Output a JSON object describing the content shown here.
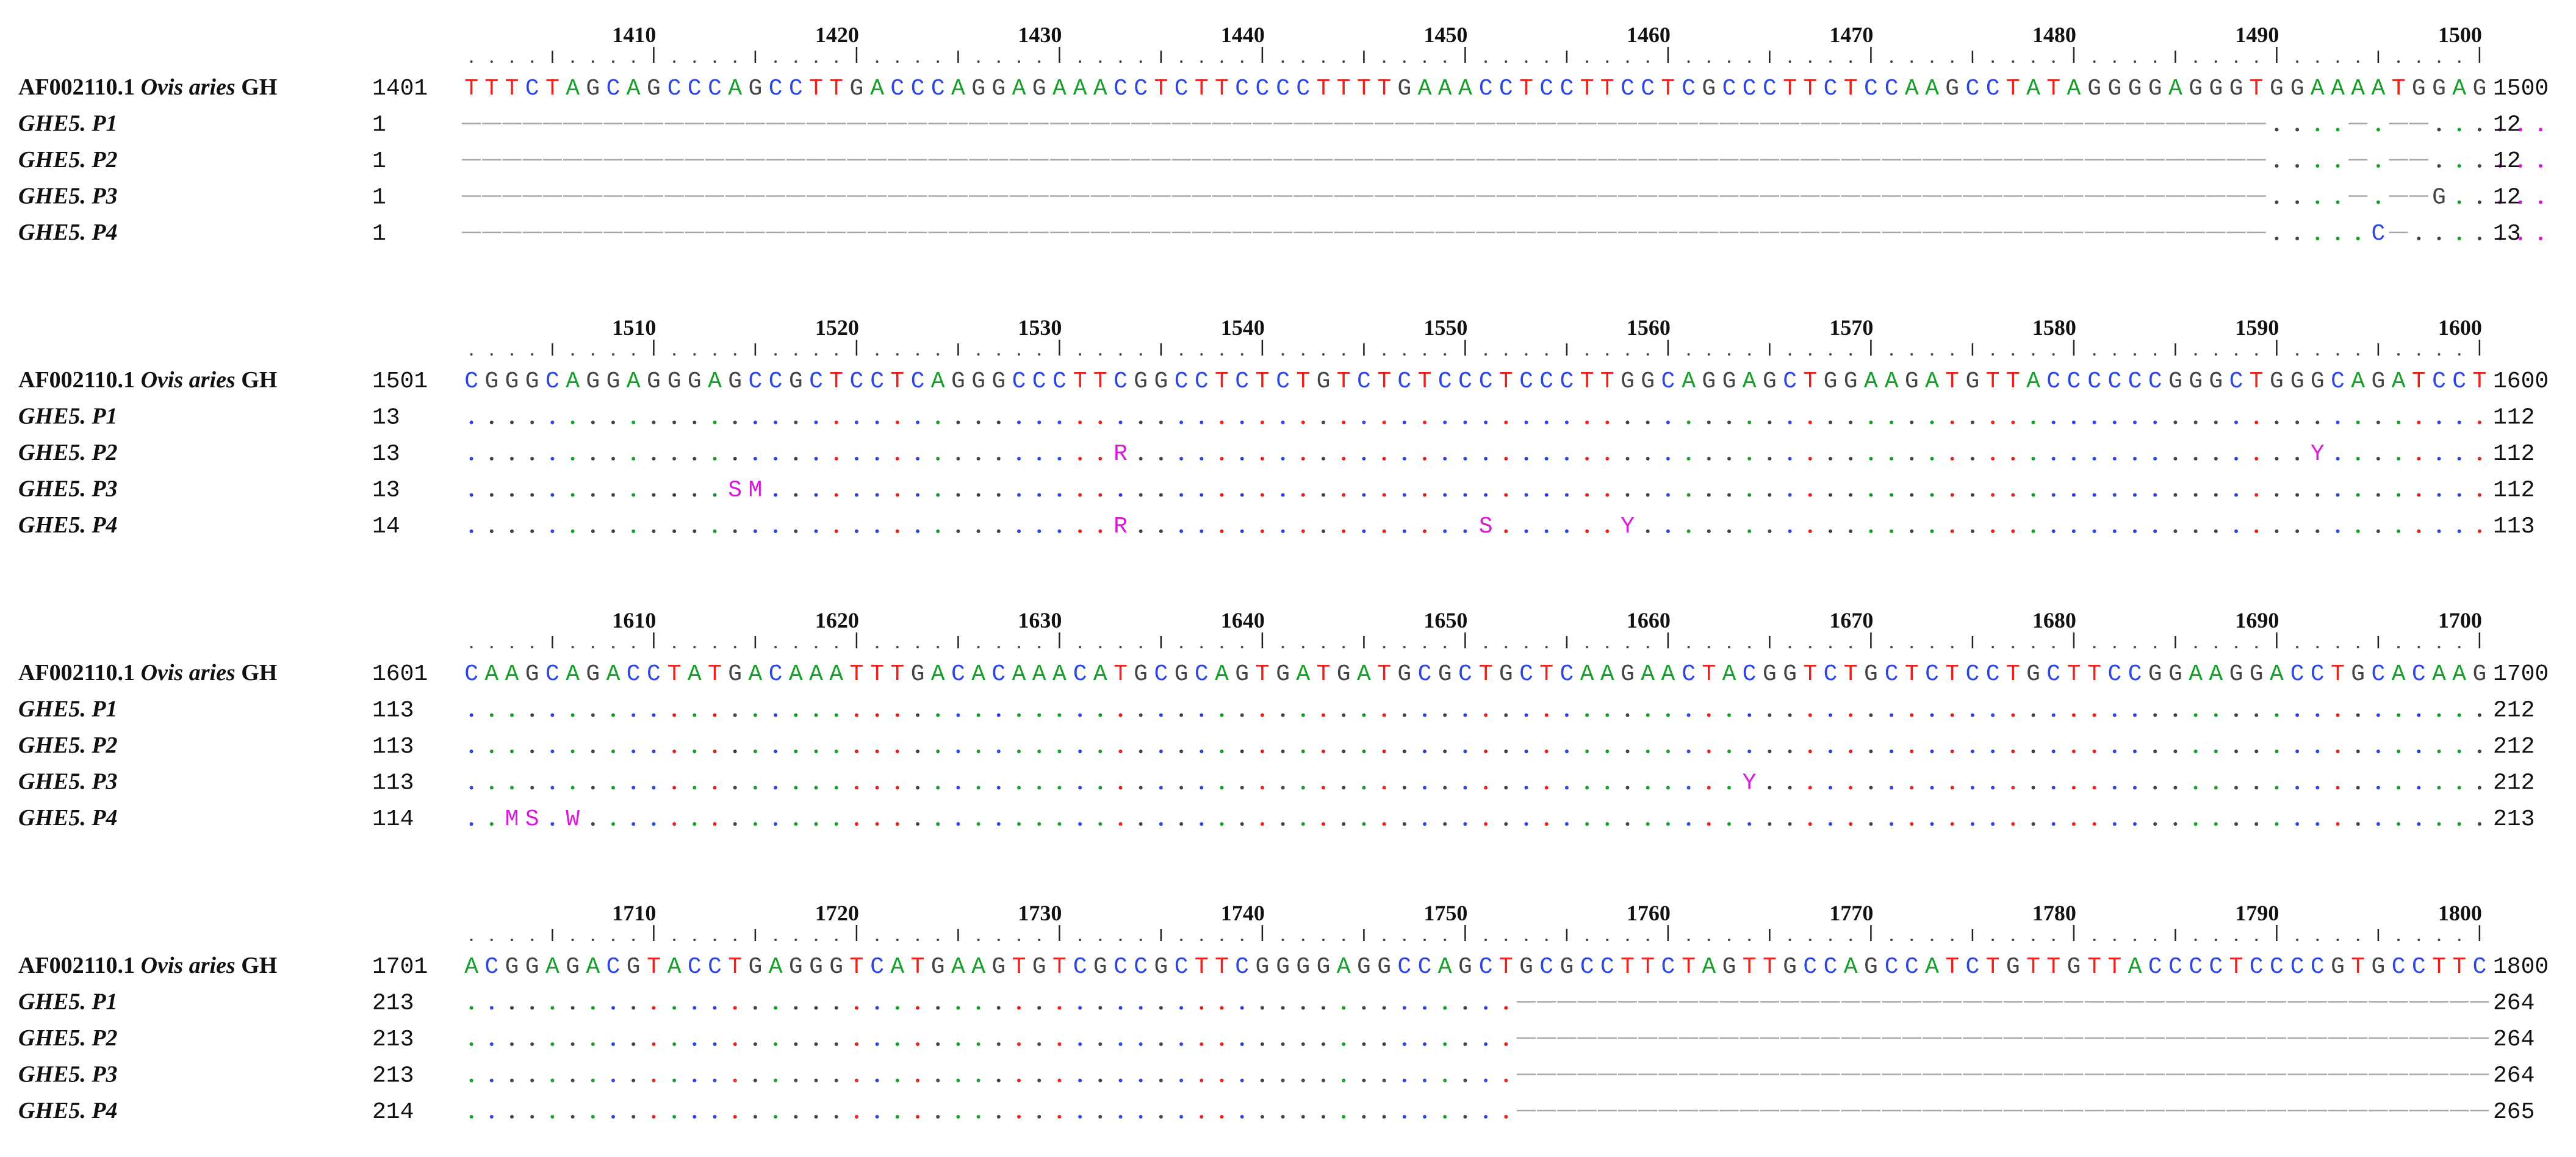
{
  "colors": {
    "A": "#16a02a",
    "C": "#2c46e6",
    "G": "#444444",
    "T": "#e8221c",
    "iupac": "#d81ad8",
    "gap": "#a8a8a8",
    "text": "#111111"
  },
  "name_prefixes": {
    "ref": "AF002110.1 ",
    "sample": ""
  },
  "ruler_tick_char": "|",
  "blocks": [
    {
      "ruler": [
        "1410",
        "1420",
        "1430",
        "1440",
        "1450",
        "1460",
        "1470",
        "1480",
        "1490",
        "1500"
      ],
      "start_label": "1401",
      "end_label": "1500",
      "reference": {
        "name": "AF002110.1 Ovis aries GH",
        "name_species": "Ovis aries",
        "name_gene": "GH",
        "sequence": "TTTCTAGCAGCCCAGCCTTGACCCAGGAGAAACCTCTTCCCCTTTTGAAACCTCCTTCCTCGCCCTTCTCCAAGCCTATAGGGGAGGGTGGAAAATGGAG"
      },
      "samples": [
        {
          "name": "GHE5. P1",
          "start": "1",
          "end": "12",
          "sequence": "-----------------------------------------------------------------------------------------....-.--......"
        },
        {
          "name": "GHE5. P2",
          "start": "1",
          "end": "12",
          "sequence": "-----------------------------------------------------------------------------------------....-.--......"
        },
        {
          "name": "GHE5. P3",
          "start": "1",
          "end": "12",
          "sequence": "-----------------------------------------------------------------------------------------....-.--G....."
        },
        {
          "name": "GHE5. P4",
          "start": "1",
          "end": "13",
          "sequence": "-----------------------------------------------------------------------------------------.....C-......."
        }
      ]
    },
    {
      "ruler": [
        "1510",
        "1520",
        "1530",
        "1540",
        "1550",
        "1560",
        "1570",
        "1580",
        "1590",
        "1600"
      ],
      "start_label": "1501",
      "end_label": "1600",
      "reference": {
        "name": "AF002110.1 Ovis aries GH",
        "name_species": "Ovis aries",
        "name_gene": "GH",
        "sequence": "CGGGCAGGAGGGAGCCGCTCCTCAGGGCCCTTCGGCCTCTCTGTCTCTCCCTCCCTTGGCAGGAGCTGGAAGATGTTACCCCCCGGGCTGGGCAGATCCT"
      },
      "samples": [
        {
          "name": "GHE5. P1",
          "start": "13",
          "end": "112",
          "sequence": "...................................................................................................."
        },
        {
          "name": "GHE5. P2",
          "start": "13",
          "end": "112",
          "sequence": "................................R..........................................................Y........"
        },
        {
          "name": "GHE5. P3",
          "start": "13",
          "end": "112",
          "sequence": ".............SM....................................................................................."
        },
        {
          "name": "GHE5. P4",
          "start": "14",
          "end": "113",
          "sequence": "................................R.................S......Y.........................................."
        }
      ]
    },
    {
      "ruler": [
        "1610",
        "1620",
        "1630",
        "1640",
        "1650",
        "1660",
        "1670",
        "1680",
        "1690",
        "1700"
      ],
      "start_label": "1601",
      "end_label": "1700",
      "reference": {
        "name": "AF002110.1 Ovis aries GH",
        "name_species": "Ovis aries",
        "name_gene": "GH",
        "sequence": "CAAGCAGACCTATGACAAATTTGACACAAACATGCGCAGTGATGATGCGCTGCTCAAGAACTACGGTCTGCTCTCCTGCTTCCGGAAGGACCTGCACAAG"
      },
      "samples": [
        {
          "name": "GHE5. P1",
          "start": "113",
          "end": "212",
          "sequence": "...................................................................................................."
        },
        {
          "name": "GHE5. P2",
          "start": "113",
          "end": "212",
          "sequence": "...................................................................................................."
        },
        {
          "name": "GHE5. P3",
          "start": "113",
          "end": "212",
          "sequence": "...............................................................Y...................................."
        },
        {
          "name": "GHE5. P4",
          "start": "114",
          "end": "213",
          "sequence": "..MS.W.............................................................................................."
        }
      ]
    },
    {
      "ruler": [
        "1710",
        "1720",
        "1730",
        "1740",
        "1750",
        "1760",
        "1770",
        "1780",
        "1790",
        "1800"
      ],
      "start_label": "1701",
      "end_label": "1800",
      "reference": {
        "name": "AF002110.1 Ovis aries GH",
        "name_species": "Ovis aries",
        "name_gene": "GH",
        "sequence": "ACGGAGACGTACCTGAGGGTCATGAAGTGTCGCCGCTTCGGGGAGGCCAGCTGCGCCTTCTAGTTGCCAGCCATCTGTTGTTACCCCTCCCCGTGCCTTC"
      },
      "samples": [
        {
          "name": "GHE5. P1",
          "start": "213",
          "end": "264",
          "sequence": "....................................................------------------------------------------------"
        },
        {
          "name": "GHE5. P2",
          "start": "213",
          "end": "264",
          "sequence": "....................................................------------------------------------------------"
        },
        {
          "name": "GHE5. P3",
          "start": "213",
          "end": "264",
          "sequence": "....................................................------------------------------------------------"
        },
        {
          "name": "GHE5. P4",
          "start": "214",
          "end": "265",
          "sequence": "....................................................------------------------------------------------"
        }
      ]
    }
  ]
}
